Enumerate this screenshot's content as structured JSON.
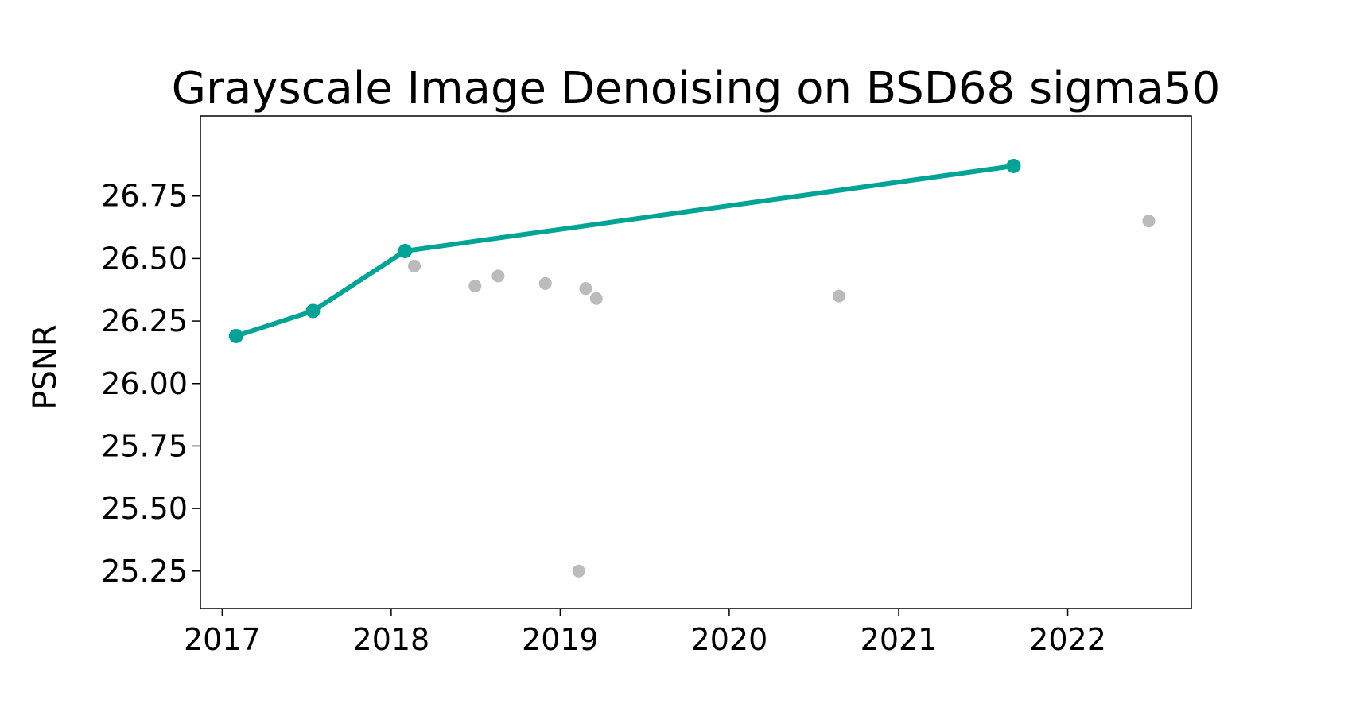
{
  "chart_data": {
    "type": "scatter",
    "title": "Grayscale Image Denoising on BSD68 sigma50",
    "xlabel": "",
    "ylabel": "PSNR",
    "x_ticks": [
      "2017",
      "2018",
      "2019",
      "2020",
      "2021",
      "2022"
    ],
    "y_ticks": [
      "25.25",
      "25.50",
      "25.75",
      "26.00",
      "26.25",
      "26.50",
      "26.75"
    ],
    "xlim": [
      "2016-11-15",
      "2022-09-25"
    ],
    "ylim": [
      25.1,
      27.07
    ],
    "grid": false,
    "series": [
      {
        "kind": "line",
        "color": "#00a497",
        "points": [
          {
            "date": "2017-01-31",
            "y": 26.19
          },
          {
            "date": "2017-07-16",
            "y": 26.29
          },
          {
            "date": "2018-01-31",
            "y": 26.53
          },
          {
            "date": "2021-09-06",
            "y": 26.87
          }
        ]
      },
      {
        "kind": "scatter",
        "color": "#bbbbbb",
        "points": [
          {
            "date": "2018-02-20",
            "y": 26.47
          },
          {
            "date": "2018-07-01",
            "y": 26.39
          },
          {
            "date": "2018-08-20",
            "y": 26.43
          },
          {
            "date": "2018-11-30",
            "y": 26.4
          },
          {
            "date": "2019-02-10",
            "y": 25.25
          },
          {
            "date": "2019-02-25",
            "y": 26.38
          },
          {
            "date": "2019-03-20",
            "y": 26.34
          },
          {
            "date": "2020-08-25",
            "y": 26.35
          },
          {
            "date": "2022-06-25",
            "y": 26.65
          }
        ]
      }
    ]
  }
}
